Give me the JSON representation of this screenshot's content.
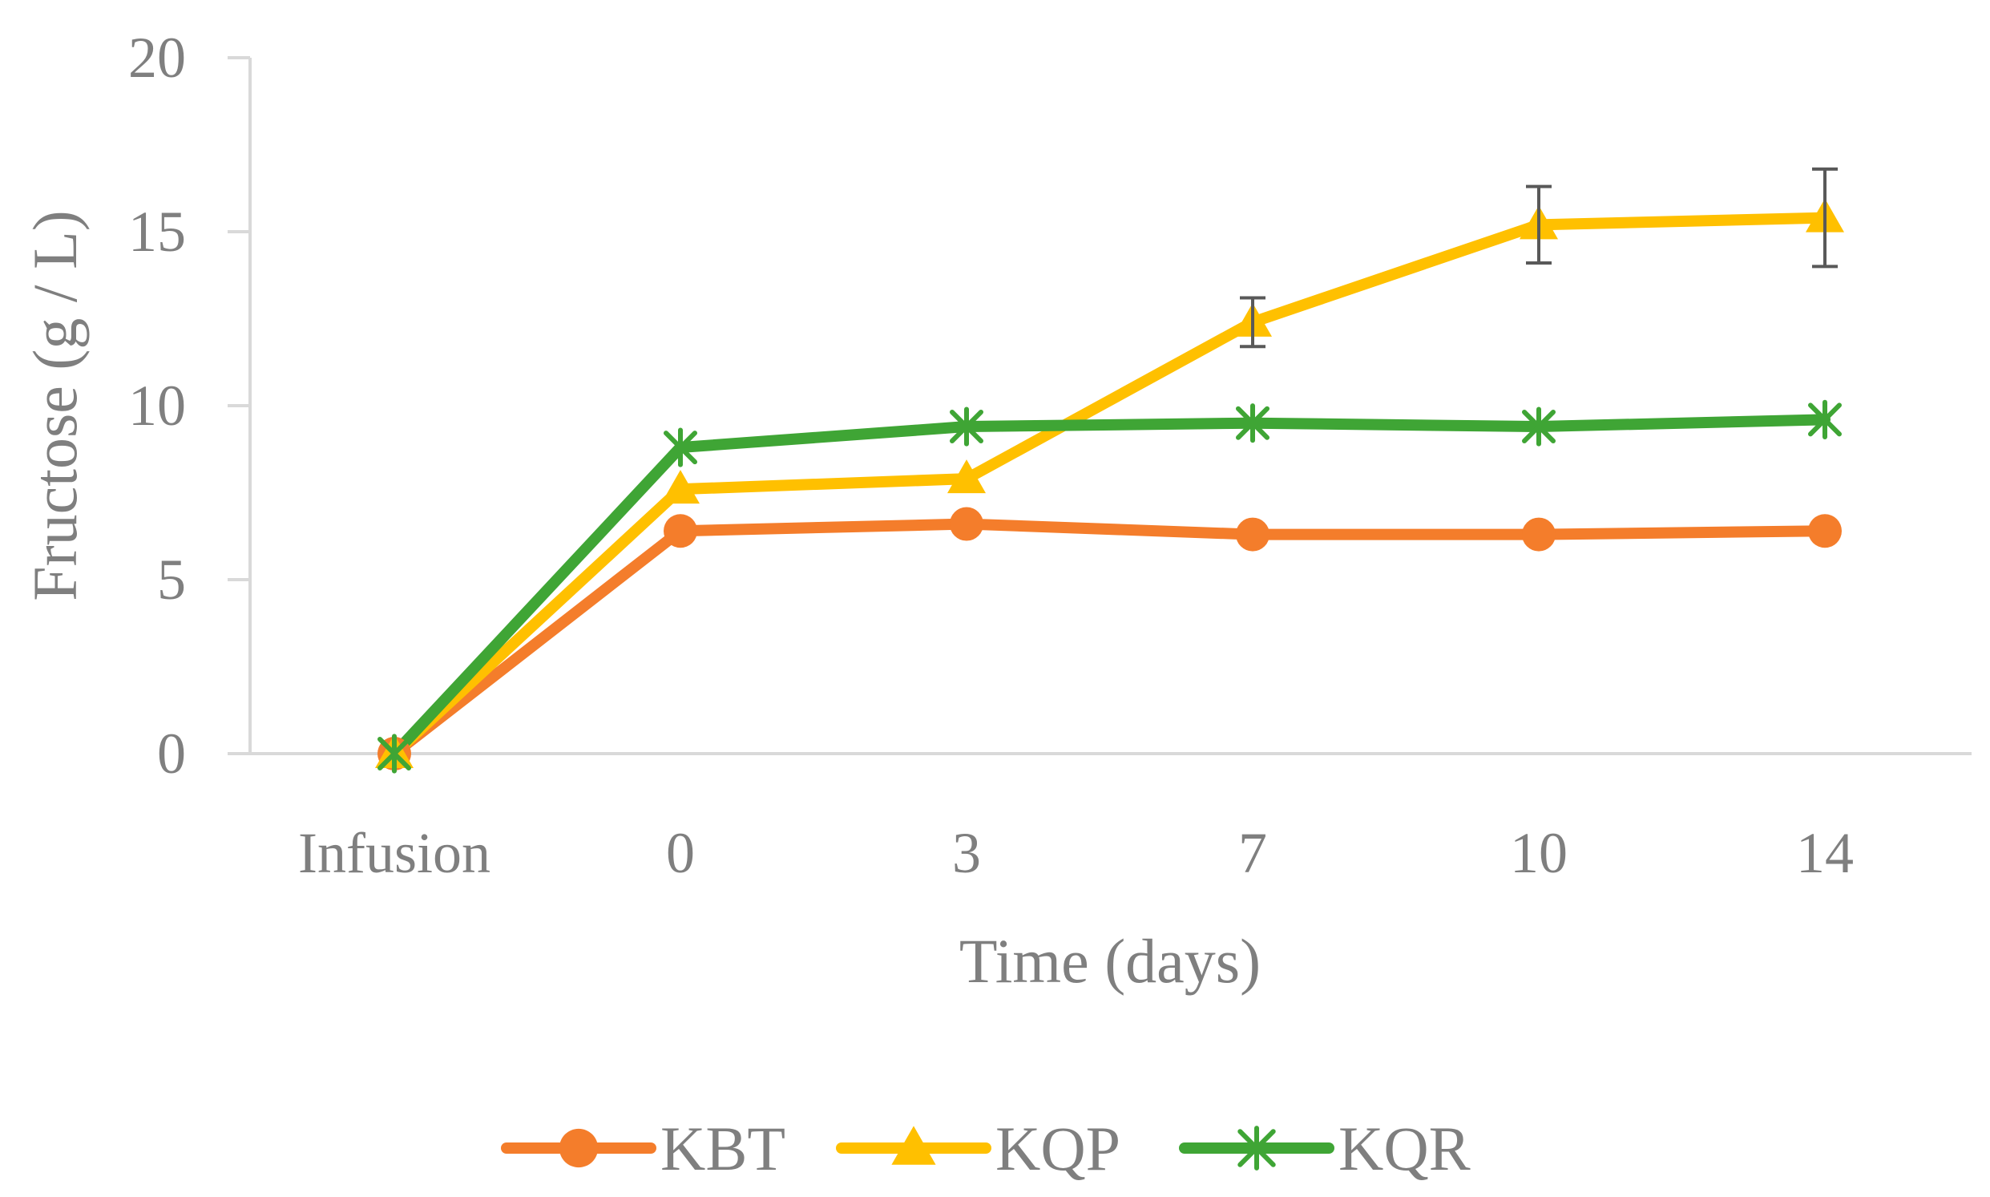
{
  "chart_data": {
    "type": "line",
    "title": "",
    "xlabel": "Time (days)",
    "ylabel": "Fructose (g / L)",
    "ylim": [
      0,
      20
    ],
    "yticks": [
      "0",
      "5",
      "10",
      "15",
      "20"
    ],
    "categories": [
      "Infusion",
      "0",
      "3",
      "7",
      "10",
      "14"
    ],
    "grid": false,
    "legend": "bottom",
    "series": [
      {
        "name": "KBT",
        "marker": "circle",
        "color": "#f47d2b",
        "values": [
          0.0,
          6.4,
          6.6,
          6.3,
          6.3,
          6.4
        ],
        "errors": [
          0.0,
          0.1,
          0.1,
          0.1,
          0.1,
          0.1
        ]
      },
      {
        "name": "KQP",
        "marker": "triangle",
        "color": "#ffc000",
        "values": [
          0.0,
          7.6,
          7.9,
          12.4,
          15.2,
          15.4
        ],
        "errors": [
          0.0,
          0.1,
          0.2,
          0.7,
          1.1,
          1.4
        ]
      },
      {
        "name": "KQR",
        "marker": "star",
        "color": "#3fa535",
        "values": [
          0.0,
          8.8,
          9.4,
          9.5,
          9.4,
          9.6
        ],
        "errors": [
          0.0,
          0.1,
          0.1,
          0.1,
          0.1,
          0.1
        ]
      }
    ]
  }
}
